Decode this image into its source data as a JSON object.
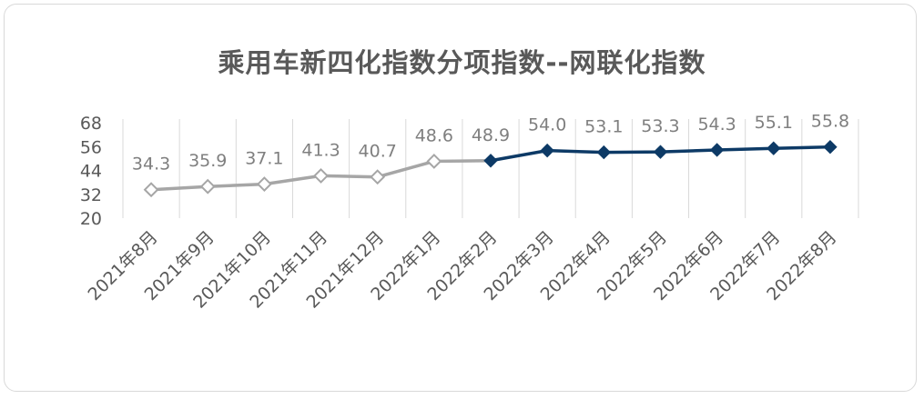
{
  "chart_data": {
    "type": "line",
    "title": "乘用车新四化指数分项指数--网联化指数",
    "categories": [
      "2021年8月",
      "2021年9月",
      "2021年10月",
      "2021年11月",
      "2021年12月",
      "2022年1月",
      "2022年2月",
      "2022年3月",
      "2022年4月",
      "2022年5月",
      "2022年6月",
      "2022年7月",
      "2022年8月"
    ],
    "values": [
      34.3,
      35.9,
      37.1,
      41.3,
      40.7,
      48.6,
      48.9,
      54.0,
      53.1,
      53.3,
      54.3,
      55.1,
      55.8
    ],
    "data_labels": [
      "34.3",
      "35.9",
      "37.1",
      "41.3",
      "40.7",
      "48.6",
      "48.9",
      "54.0",
      "53.1",
      "53.3",
      "54.3",
      "55.1",
      "55.8"
    ],
    "highlight_start_index": 6,
    "ylim": [
      20,
      68
    ],
    "yticks": [
      "20",
      "32",
      "44",
      "56",
      "68"
    ],
    "ytick_values": [
      20,
      32,
      44,
      56,
      68
    ],
    "colors": {
      "past": "#a6a6a6",
      "recent": "#0d3a66",
      "grid": "#d9d9d9",
      "marker_fill_past": "#ffffff"
    },
    "grid": "vertical",
    "legend": "none"
  }
}
